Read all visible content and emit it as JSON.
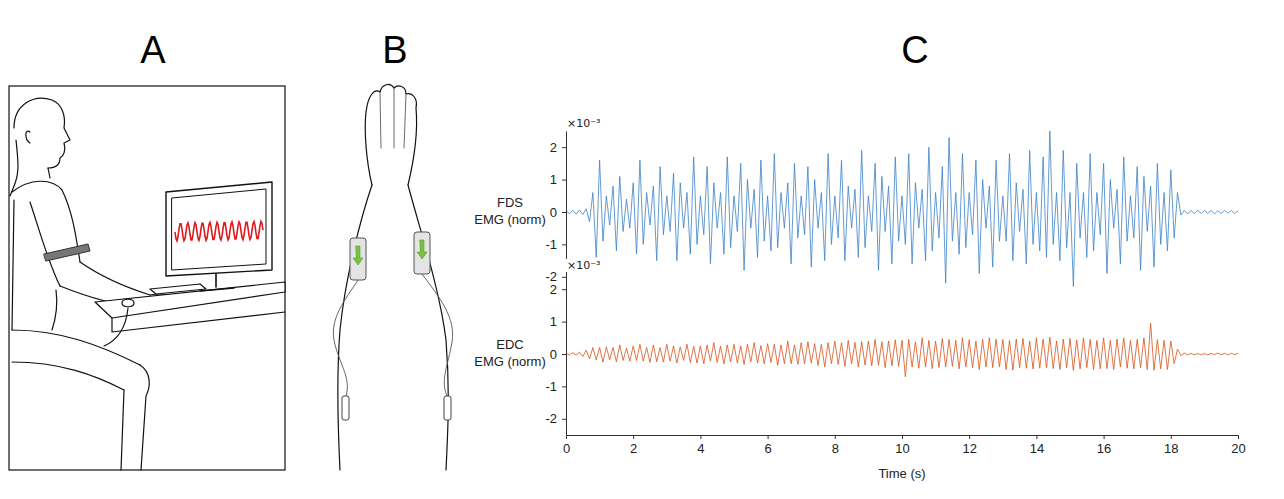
{
  "panel_labels": [
    "A",
    "B",
    "C"
  ],
  "chart_data": [
    {
      "type": "line",
      "ylabel": "FDS EMG (norm)",
      "y_exponent": "×10⁻³",
      "color": "#3c82c8",
      "xlim": [
        0,
        20
      ],
      "ylim": [
        -2.5,
        2.5
      ],
      "yticks": [
        -2,
        -1,
        0,
        1,
        2
      ],
      "tick_labels": "y",
      "x": [
        0,
        0.1,
        0.2,
        0.3,
        0.4,
        0.5,
        0.6,
        0.7,
        0.8,
        0.9,
        1,
        1.1,
        1.2,
        1.3,
        1.4,
        1.5,
        1.6,
        1.7,
        1.8,
        1.9,
        2,
        2.1,
        2.2,
        2.3,
        2.4,
        2.5,
        2.6,
        2.7,
        2.8,
        2.9,
        3,
        3.1,
        3.2,
        3.3,
        3.4,
        3.5,
        3.6,
        3.7,
        3.8,
        3.9,
        4,
        4.1,
        4.2,
        4.3,
        4.4,
        4.5,
        4.6,
        4.7,
        4.8,
        4.9,
        5,
        5.1,
        5.2,
        5.3,
        5.4,
        5.5,
        5.6,
        5.7,
        5.8,
        5.9,
        6,
        6.1,
        6.2,
        6.3,
        6.4,
        6.5,
        6.6,
        6.7,
        6.8,
        6.9,
        7,
        7.1,
        7.2,
        7.3,
        7.4,
        7.5,
        7.6,
        7.7,
        7.8,
        7.9,
        8,
        8.1,
        8.2,
        8.3,
        8.4,
        8.5,
        8.6,
        8.7,
        8.8,
        8.9,
        9,
        9.1,
        9.2,
        9.3,
        9.4,
        9.5,
        9.6,
        9.7,
        9.8,
        9.9,
        10,
        10.1,
        10.2,
        10.3,
        10.4,
        10.5,
        10.6,
        10.7,
        10.8,
        10.9,
        11,
        11.1,
        11.2,
        11.3,
        11.4,
        11.5,
        11.6,
        11.7,
        11.8,
        11.9,
        12,
        12.1,
        12.2,
        12.3,
        12.4,
        12.5,
        12.6,
        12.7,
        12.8,
        12.9,
        13,
        13.1,
        13.2,
        13.3,
        13.4,
        13.5,
        13.6,
        13.7,
        13.8,
        13.9,
        14,
        14.1,
        14.2,
        14.3,
        14.4,
        14.5,
        14.6,
        14.7,
        14.8,
        14.9,
        15,
        15.1,
        15.2,
        15.3,
        15.4,
        15.5,
        15.6,
        15.7,
        15.8,
        15.9,
        16,
        16.1,
        16.2,
        16.3,
        16.4,
        16.5,
        16.6,
        16.7,
        16.8,
        16.9,
        17,
        17.1,
        17.2,
        17.3,
        17.4,
        17.5,
        17.6,
        17.7,
        17.8,
        17.9,
        18,
        18.1,
        18.2,
        18.3,
        18.4,
        18.5,
        18.6,
        18.7,
        18.8,
        18.9,
        19,
        19.1,
        19.2,
        19.3,
        19.4,
        19.5,
        19.6,
        19.7,
        19.8,
        19.9,
        20
      ],
      "values": [
        0.05,
        -0.06,
        0.05,
        -0.07,
        0.06,
        -0.08,
        0.1,
        -0.3,
        0.6,
        -1.4,
        1.6,
        -0.9,
        0.5,
        -0.4,
        0.8,
        -1.2,
        1.1,
        -0.6,
        0.4,
        -0.5,
        0.9,
        -1.3,
        1.6,
        -1.0,
        0.6,
        -0.4,
        0.8,
        -1.5,
        1.4,
        -0.7,
        0.5,
        -0.6,
        1.2,
        -1.5,
        0.9,
        -0.5,
        0.6,
        -1.3,
        1.7,
        -1.0,
        0.5,
        -0.7,
        1.4,
        -1.6,
        0.9,
        -0.5,
        0.6,
        -1.3,
        1.7,
        -1.1,
        0.5,
        -0.6,
        1.5,
        -1.8,
        1.0,
        -0.5,
        0.7,
        -1.4,
        1.6,
        -0.9,
        0.5,
        -1.2,
        1.8,
        -1.1,
        0.6,
        -0.5,
        0.9,
        -1.6,
        1.5,
        -0.8,
        0.5,
        -0.7,
        1.4,
        -1.7,
        1.0,
        -0.5,
        0.6,
        -1.5,
        1.8,
        -1.0,
        0.5,
        -0.8,
        1.6,
        -1.5,
        0.8,
        -0.5,
        0.7,
        -1.4,
        1.9,
        -1.1,
        0.5,
        -0.6,
        1.5,
        -1.8,
        1.1,
        -0.6,
        0.8,
        -1.6,
        1.7,
        -0.9,
        0.5,
        -1.0,
        1.8,
        -1.6,
        0.9,
        -0.5,
        0.7,
        -1.5,
        2.0,
        -1.2,
        0.6,
        -0.8,
        1.4,
        -2.2,
        2.3,
        -0.9,
        0.6,
        -1.3,
        1.8,
        -1.1,
        0.6,
        -0.7,
        1.6,
        -1.9,
        1.0,
        -0.5,
        0.8,
        -1.7,
        1.6,
        -0.9,
        0.5,
        -0.9,
        1.8,
        -1.5,
        0.9,
        -0.6,
        0.7,
        -1.6,
        1.9,
        -1.0,
        0.6,
        -1.2,
        1.7,
        -1.4,
        2.5,
        -1.0,
        0.6,
        -1.5,
        1.9,
        -1.1,
        0.6,
        -2.3,
        1.5,
        -0.8,
        0.6,
        -1.4,
        1.8,
        -1.2,
        0.6,
        -0.7,
        1.5,
        -1.9,
        1.0,
        -0.5,
        0.7,
        -1.6,
        1.7,
        -0.9,
        0.5,
        -0.8,
        1.4,
        -1.8,
        1.1,
        -0.6,
        0.8,
        -1.7,
        1.5,
        -1.0,
        0.6,
        -1.2,
        1.3,
        -0.8,
        0.6,
        -0.1,
        0.05,
        -0.06,
        0.05,
        -0.05,
        0.06,
        -0.05,
        0.05,
        -0.04,
        0.05,
        -0.06,
        0.04,
        -0.05,
        0.05,
        -0.04,
        0.05,
        -0.05,
        0.04
      ]
    },
    {
      "type": "line",
      "ylabel": "EDC EMG (norm)",
      "y_exponent": "×10⁻³",
      "xlabel": "Time (s)",
      "color": "#d95319",
      "xlim": [
        0,
        20
      ],
      "ylim": [
        -2.5,
        2.5
      ],
      "xticks": [
        0,
        2,
        4,
        6,
        8,
        10,
        12,
        14,
        16,
        18,
        20
      ],
      "yticks": [
        -2,
        -1,
        0,
        1,
        2
      ],
      "x": [
        0,
        0.1,
        0.2,
        0.3,
        0.4,
        0.5,
        0.6,
        0.7,
        0.8,
        0.9,
        1,
        1.1,
        1.2,
        1.3,
        1.4,
        1.5,
        1.6,
        1.7,
        1.8,
        1.9,
        2,
        2.1,
        2.2,
        2.3,
        2.4,
        2.5,
        2.6,
        2.7,
        2.8,
        2.9,
        3,
        3.1,
        3.2,
        3.3,
        3.4,
        3.5,
        3.6,
        3.7,
        3.8,
        3.9,
        4,
        4.1,
        4.2,
        4.3,
        4.4,
        4.5,
        4.6,
        4.7,
        4.8,
        4.9,
        5,
        5.1,
        5.2,
        5.3,
        5.4,
        5.5,
        5.6,
        5.7,
        5.8,
        5.9,
        6,
        6.1,
        6.2,
        6.3,
        6.4,
        6.5,
        6.6,
        6.7,
        6.8,
        6.9,
        7,
        7.1,
        7.2,
        7.3,
        7.4,
        7.5,
        7.6,
        7.7,
        7.8,
        7.9,
        8,
        8.1,
        8.2,
        8.3,
        8.4,
        8.5,
        8.6,
        8.7,
        8.8,
        8.9,
        9,
        9.1,
        9.2,
        9.3,
        9.4,
        9.5,
        9.6,
        9.7,
        9.8,
        9.9,
        10,
        10.1,
        10.2,
        10.3,
        10.4,
        10.5,
        10.6,
        10.7,
        10.8,
        10.9,
        11,
        11.1,
        11.2,
        11.3,
        11.4,
        11.5,
        11.6,
        11.7,
        11.8,
        11.9,
        12,
        12.1,
        12.2,
        12.3,
        12.4,
        12.5,
        12.6,
        12.7,
        12.8,
        12.9,
        13,
        13.1,
        13.2,
        13.3,
        13.4,
        13.5,
        13.6,
        13.7,
        13.8,
        13.9,
        14,
        14.1,
        14.2,
        14.3,
        14.4,
        14.5,
        14.6,
        14.7,
        14.8,
        14.9,
        15,
        15.1,
        15.2,
        15.3,
        15.4,
        15.5,
        15.6,
        15.7,
        15.8,
        15.9,
        16,
        16.1,
        16.2,
        16.3,
        16.4,
        16.5,
        16.6,
        16.7,
        16.8,
        16.9,
        17,
        17.1,
        17.2,
        17.3,
        17.4,
        17.5,
        17.6,
        17.7,
        17.8,
        17.9,
        18,
        18.1,
        18.2,
        18.3,
        18.4,
        18.5,
        18.6,
        18.7,
        18.8,
        18.9,
        19,
        19.1,
        19.2,
        19.3,
        19.4,
        19.5,
        19.6,
        19.7,
        19.8,
        19.9,
        20
      ],
      "values": [
        0.03,
        -0.03,
        0.04,
        -0.03,
        0.05,
        -0.08,
        0.12,
        -0.15,
        0.2,
        -0.18,
        0.2,
        -0.25,
        0.22,
        -0.18,
        0.2,
        -0.24,
        0.28,
        -0.2,
        0.18,
        -0.22,
        0.25,
        -0.2,
        0.3,
        -0.22,
        0.2,
        -0.26,
        0.28,
        -0.24,
        0.2,
        -0.25,
        0.3,
        -0.22,
        0.25,
        -0.28,
        0.22,
        -0.2,
        0.3,
        -0.26,
        0.24,
        -0.28,
        0.25,
        -0.3,
        0.28,
        -0.22,
        0.35,
        -0.26,
        0.24,
        -0.3,
        0.28,
        -0.25,
        0.3,
        -0.28,
        0.25,
        -0.32,
        0.3,
        -0.24,
        0.35,
        -0.28,
        0.26,
        -0.3,
        0.32,
        -0.26,
        0.3,
        -0.35,
        0.28,
        -0.3,
        0.4,
        -0.3,
        0.28,
        -0.32,
        0.35,
        -0.3,
        0.38,
        -0.28,
        0.32,
        -0.35,
        0.3,
        -0.4,
        0.35,
        -0.3,
        0.4,
        -0.32,
        0.35,
        -0.38,
        0.42,
        -0.3,
        0.36,
        -0.4,
        0.38,
        -0.34,
        0.4,
        -0.36,
        0.45,
        -0.35,
        0.38,
        -0.42,
        0.4,
        -0.36,
        0.44,
        -0.38,
        0.42,
        -0.7,
        0.45,
        -0.4,
        0.38,
        -0.44,
        0.5,
        -0.4,
        0.42,
        -0.45,
        0.4,
        -0.42,
        0.48,
        -0.4,
        0.45,
        -0.38,
        0.42,
        -0.46,
        0.5,
        -0.4,
        0.44,
        -0.42,
        0.4,
        -0.48,
        0.45,
        -0.4,
        0.5,
        -0.42,
        0.46,
        -0.4,
        0.45,
        -0.48,
        0.42,
        -0.5,
        0.46,
        -0.42,
        0.48,
        -0.44,
        0.4,
        -0.46,
        0.5,
        -0.44,
        0.46,
        -0.42,
        0.52,
        -0.45,
        0.4,
        -0.48,
        0.46,
        -0.42,
        0.48,
        -0.5,
        0.44,
        -0.46,
        0.5,
        -0.42,
        0.45,
        -0.48,
        0.42,
        -0.46,
        0.5,
        -0.45,
        0.42,
        -0.48,
        0.46,
        -0.4,
        0.5,
        -0.44,
        0.42,
        -0.46,
        0.45,
        -0.42,
        0.5,
        -0.48,
        0.95,
        -0.5,
        0.44,
        -0.46,
        0.42,
        -0.48,
        0.4,
        -0.3,
        0.15,
        -0.05,
        0.03,
        -0.03,
        0.02,
        -0.03,
        0.02,
        -0.03,
        0.02,
        -0.03,
        0.02,
        -0.02,
        0.03,
        -0.02,
        0.02,
        -0.03,
        0.02,
        -0.02,
        0.02
      ]
    }
  ]
}
